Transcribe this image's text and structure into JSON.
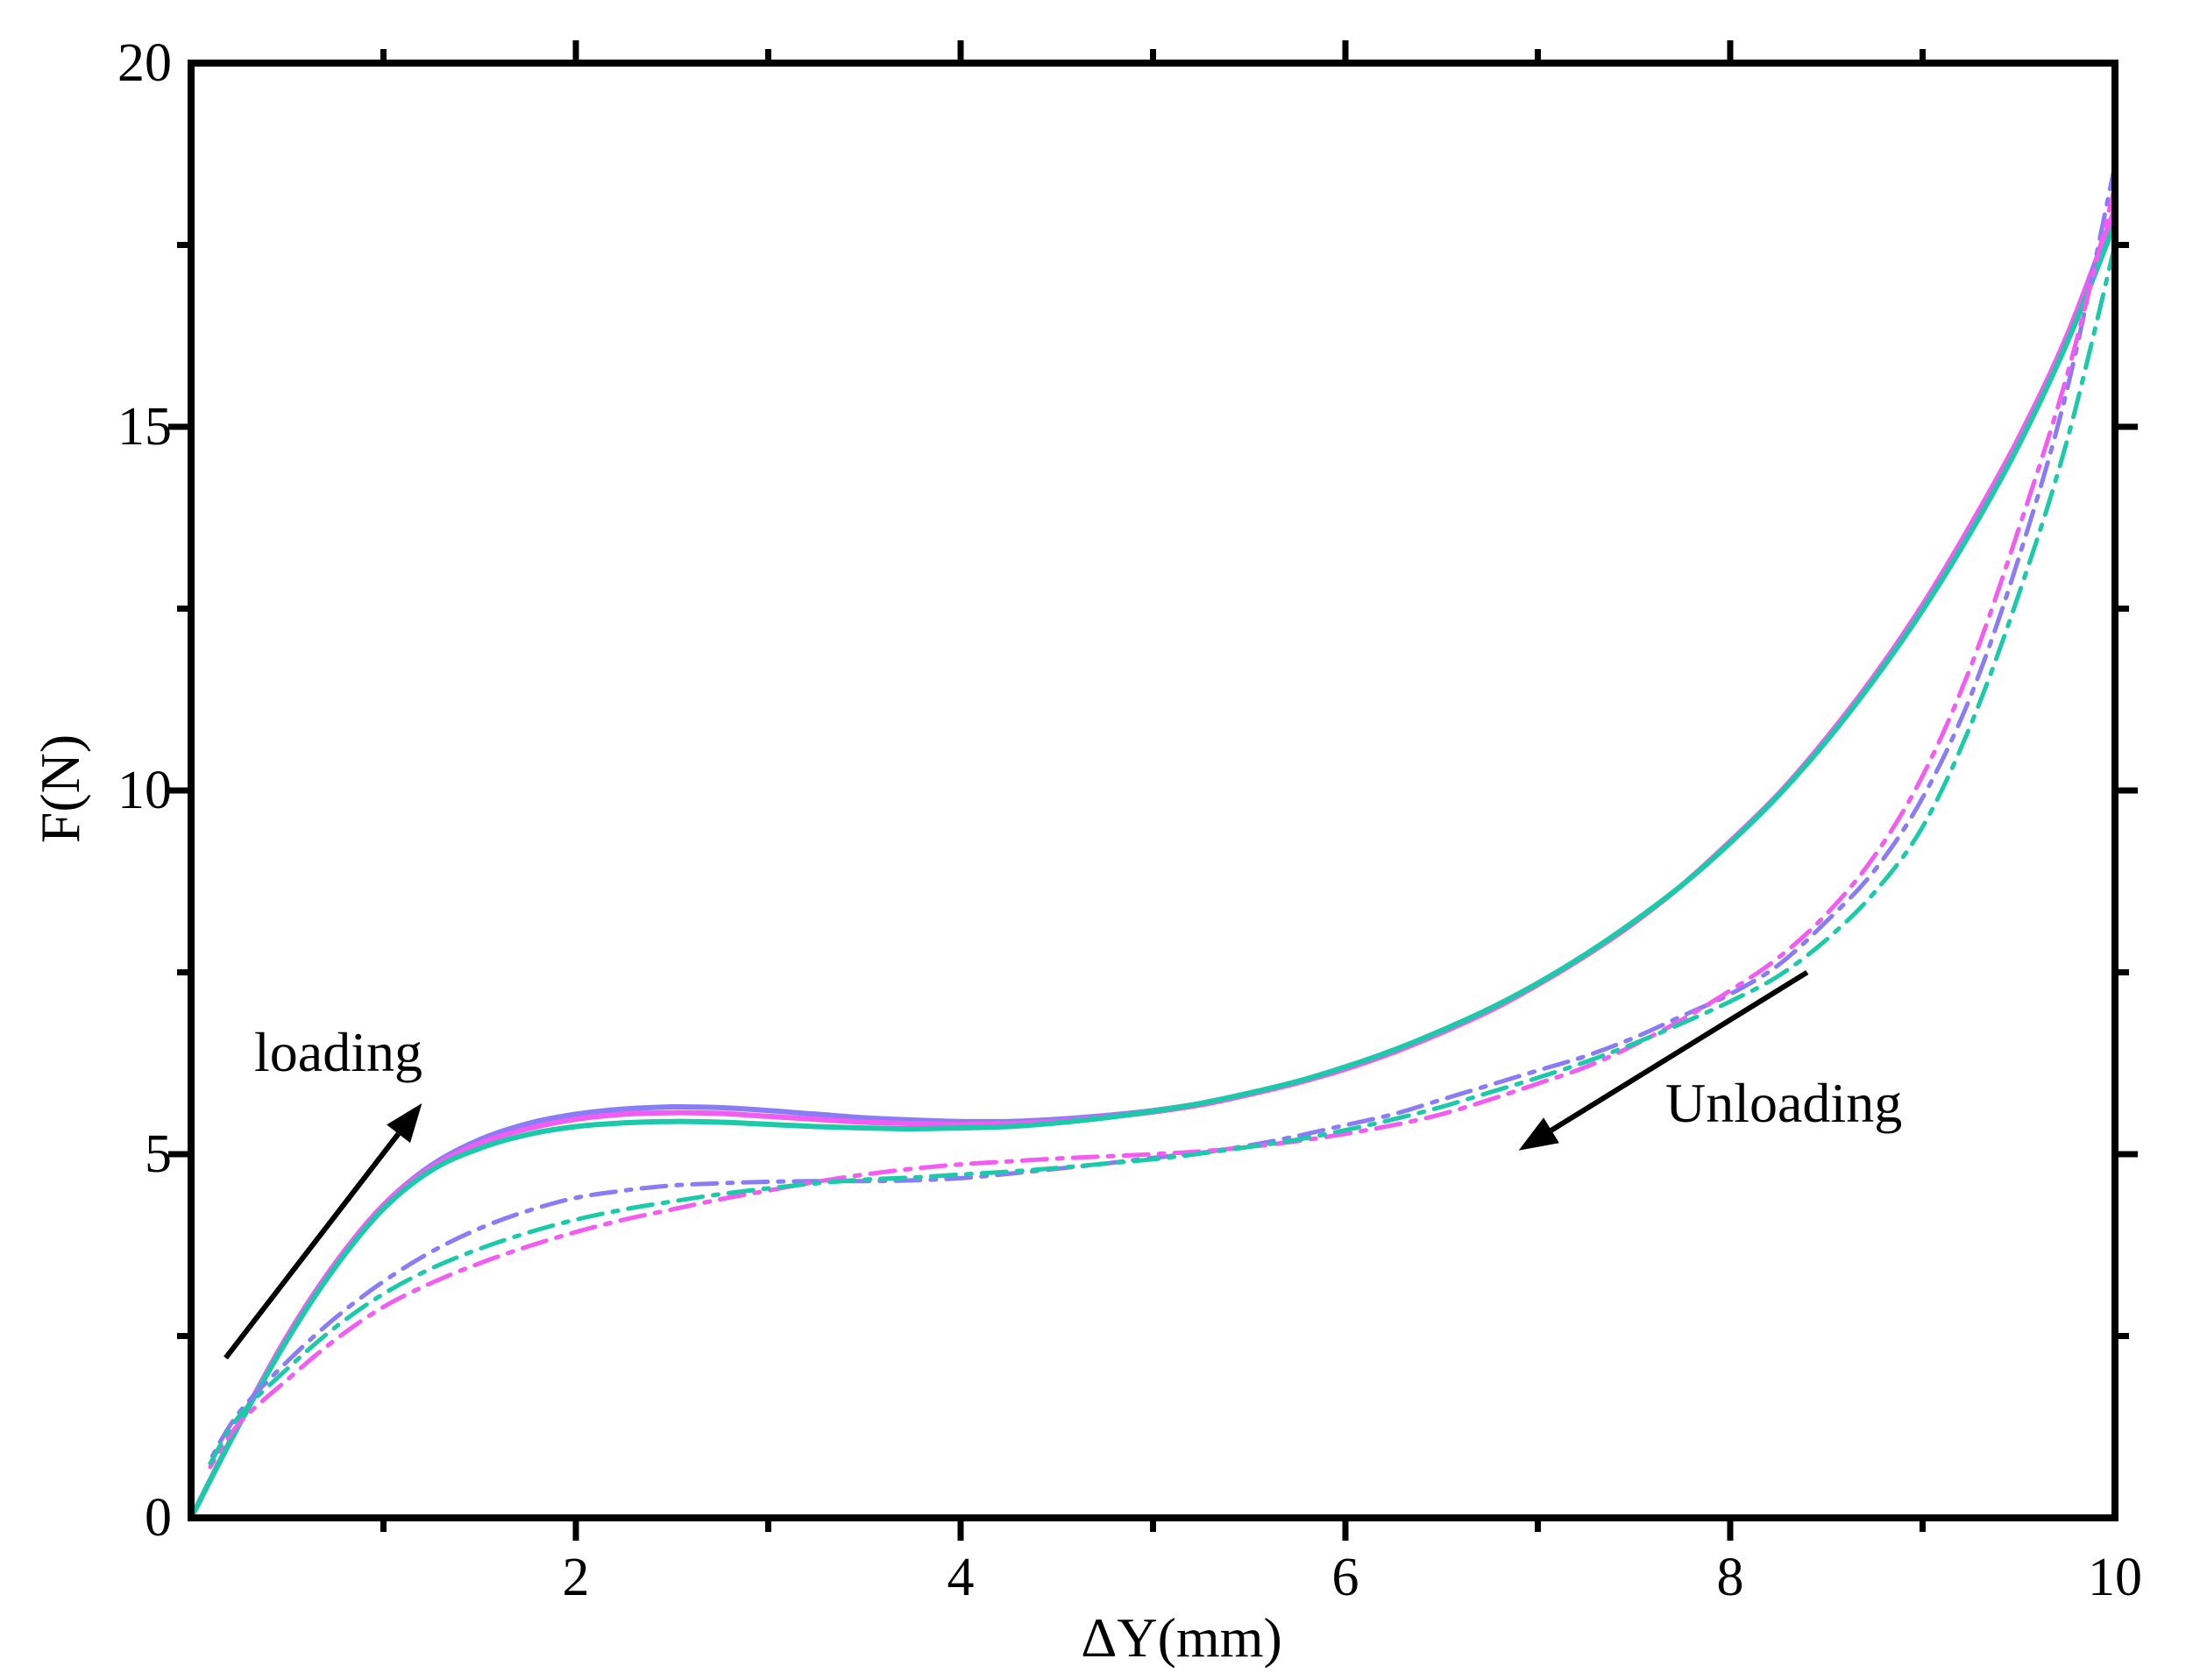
{
  "chart_data": {
    "type": "line",
    "title": "",
    "xlabel": "ΔY(mm)",
    "ylabel": "F(N)",
    "xlim": [
      0,
      10
    ],
    "ylim": [
      0,
      20
    ],
    "x_ticks": [
      "2",
      "4",
      "6",
      "8",
      "10"
    ],
    "y_ticks": [
      "0",
      "5",
      "10",
      "15",
      "20"
    ],
    "grid": false,
    "legend": "none",
    "annotations": [
      {
        "id": "loading",
        "text": "loading",
        "arrow_from": [
          0.18,
          2.2
        ],
        "arrow_to": [
          1.2,
          5.7
        ]
      },
      {
        "id": "unloading",
        "text": "Unloading",
        "arrow_from": [
          8.4,
          7.5
        ],
        "arrow_to": [
          6.9,
          5.05
        ]
      }
    ],
    "colors": {
      "purple": "#8a7cf5",
      "magenta": "#f25cf0",
      "teal": "#1cc9a9",
      "axis": "#000000"
    },
    "series": [
      {
        "name": "loading-purple",
        "phase": "loading",
        "color": "#8a7cf5",
        "style": "solid",
        "x": [
          0,
          0.25,
          0.5,
          0.75,
          1.0,
          1.25,
          1.5,
          1.75,
          2.0,
          2.25,
          2.5,
          2.75,
          3.0,
          3.25,
          3.5,
          3.75,
          4.0,
          4.25,
          4.5,
          4.75,
          5.0,
          5.25,
          5.5,
          5.75,
          6.0,
          6.25,
          6.5,
          6.75,
          7.0,
          7.25,
          7.5,
          7.75,
          8.0,
          8.25,
          8.5,
          8.75,
          9.0,
          9.25,
          9.5,
          9.75,
          10.0
        ],
        "y": [
          0,
          1.3,
          2.5,
          3.5,
          4.3,
          4.85,
          5.2,
          5.42,
          5.55,
          5.62,
          5.65,
          5.64,
          5.6,
          5.55,
          5.5,
          5.47,
          5.45,
          5.45,
          5.48,
          5.53,
          5.6,
          5.7,
          5.84,
          6.0,
          6.2,
          6.43,
          6.7,
          7.0,
          7.35,
          7.75,
          8.2,
          8.7,
          9.3,
          9.95,
          10.7,
          11.55,
          12.5,
          13.6,
          14.8,
          16.2,
          17.9
        ]
      },
      {
        "name": "loading-magenta",
        "phase": "loading",
        "color": "#f25cf0",
        "style": "solid",
        "x": [
          0,
          0.25,
          0.5,
          0.75,
          1.0,
          1.25,
          1.5,
          1.75,
          2.0,
          2.25,
          2.5,
          2.75,
          3.0,
          3.25,
          3.5,
          3.75,
          4.0,
          4.25,
          4.5,
          4.75,
          5.0,
          5.25,
          5.5,
          5.75,
          6.0,
          6.25,
          6.5,
          6.75,
          7.0,
          7.25,
          7.5,
          7.75,
          8.0,
          8.25,
          8.5,
          8.75,
          9.0,
          9.25,
          9.5,
          9.75,
          10.0
        ],
        "y": [
          0,
          1.3,
          2.5,
          3.5,
          4.3,
          4.82,
          5.15,
          5.35,
          5.48,
          5.55,
          5.57,
          5.56,
          5.52,
          5.48,
          5.44,
          5.42,
          5.41,
          5.42,
          5.45,
          5.51,
          5.58,
          5.68,
          5.82,
          5.98,
          6.17,
          6.4,
          6.67,
          6.97,
          7.33,
          7.73,
          8.18,
          8.7,
          9.3,
          9.95,
          10.72,
          11.58,
          12.55,
          13.65,
          14.85,
          16.25,
          18.0
        ]
      },
      {
        "name": "loading-teal",
        "phase": "loading",
        "color": "#1cc9a9",
        "style": "solid",
        "x": [
          0,
          0.25,
          0.5,
          0.75,
          1.0,
          1.25,
          1.5,
          1.75,
          2.0,
          2.25,
          2.5,
          2.75,
          3.0,
          3.25,
          3.5,
          3.75,
          4.0,
          4.25,
          4.5,
          4.75,
          5.0,
          5.25,
          5.5,
          5.75,
          6.0,
          6.25,
          6.5,
          6.75,
          7.0,
          7.25,
          7.5,
          7.75,
          8.0,
          8.25,
          8.5,
          8.75,
          9.0,
          9.25,
          9.5,
          9.75,
          10.0
        ],
        "y": [
          0,
          1.28,
          2.45,
          3.45,
          4.25,
          4.78,
          5.08,
          5.27,
          5.38,
          5.43,
          5.45,
          5.44,
          5.41,
          5.38,
          5.36,
          5.35,
          5.36,
          5.38,
          5.43,
          5.5,
          5.59,
          5.7,
          5.84,
          6.0,
          6.2,
          6.43,
          6.7,
          7.0,
          7.35,
          7.75,
          8.2,
          8.7,
          9.28,
          9.93,
          10.68,
          11.53,
          12.48,
          13.55,
          14.75,
          16.15,
          17.8
        ]
      },
      {
        "name": "unloading-purple",
        "phase": "unloading",
        "color": "#8a7cf5",
        "style": "dashdot",
        "x": [
          10.0,
          9.75,
          9.5,
          9.25,
          9.0,
          8.75,
          8.5,
          8.25,
          8.0,
          7.75,
          7.5,
          7.25,
          7.0,
          6.75,
          6.5,
          6.25,
          6.0,
          5.75,
          5.5,
          5.25,
          5.0,
          4.75,
          4.5,
          4.25,
          4.0,
          3.75,
          3.5,
          3.25,
          3.0,
          2.75,
          2.5,
          2.25,
          2.0,
          1.75,
          1.5,
          1.25,
          1.0,
          0.75,
          0.5,
          0.25,
          0.1
        ],
        "y": [
          18.6,
          15.5,
          13.2,
          11.3,
          9.9,
          8.9,
          8.2,
          7.6,
          7.2,
          6.9,
          6.6,
          6.35,
          6.15,
          5.95,
          5.75,
          5.55,
          5.4,
          5.25,
          5.12,
          5.02,
          4.95,
          4.87,
          4.8,
          4.73,
          4.67,
          4.64,
          4.63,
          4.63,
          4.62,
          4.6,
          4.57,
          4.5,
          4.4,
          4.22,
          3.98,
          3.66,
          3.25,
          2.75,
          2.15,
          1.45,
          0.8
        ]
      },
      {
        "name": "unloading-magenta",
        "phase": "unloading",
        "color": "#f25cf0",
        "style": "dashdot",
        "x": [
          10.0,
          9.75,
          9.5,
          9.25,
          9.0,
          8.75,
          8.5,
          8.25,
          8.0,
          7.75,
          7.5,
          7.25,
          7.0,
          6.75,
          6.5,
          6.25,
          6.0,
          5.75,
          5.5,
          5.25,
          5.0,
          4.75,
          4.5,
          4.25,
          4.0,
          3.75,
          3.5,
          3.25,
          3.0,
          2.75,
          2.5,
          2.25,
          2.0,
          1.75,
          1.5,
          1.25,
          1.0,
          0.75,
          0.5,
          0.25,
          0.1
        ],
        "y": [
          18.3,
          15.7,
          13.6,
          11.7,
          10.2,
          9.1,
          8.3,
          7.7,
          7.25,
          6.85,
          6.5,
          6.2,
          5.97,
          5.75,
          5.55,
          5.4,
          5.28,
          5.18,
          5.1,
          5.04,
          5.0,
          4.97,
          4.94,
          4.9,
          4.86,
          4.8,
          4.72,
          4.62,
          4.5,
          4.38,
          4.24,
          4.1,
          3.93,
          3.73,
          3.5,
          3.23,
          2.9,
          2.45,
          1.9,
          1.3,
          0.7
        ]
      },
      {
        "name": "unloading-teal",
        "phase": "unloading",
        "color": "#1cc9a9",
        "style": "dashdot",
        "x": [
          10.0,
          9.75,
          9.5,
          9.25,
          9.0,
          8.75,
          8.5,
          8.25,
          8.0,
          7.75,
          7.5,
          7.25,
          7.0,
          6.75,
          6.5,
          6.25,
          6.0,
          5.75,
          5.5,
          5.25,
          5.0,
          4.75,
          4.5,
          4.25,
          4.0,
          3.75,
          3.5,
          3.25,
          3.0,
          2.75,
          2.5,
          2.25,
          2.0,
          1.75,
          1.5,
          1.25,
          1.0,
          0.75,
          0.5,
          0.25,
          0.1
        ],
        "y": [
          17.5,
          14.8,
          12.7,
          10.9,
          9.5,
          8.6,
          7.95,
          7.45,
          7.1,
          6.8,
          6.52,
          6.27,
          6.05,
          5.85,
          5.65,
          5.48,
          5.33,
          5.2,
          5.1,
          5.01,
          4.93,
          4.87,
          4.81,
          4.76,
          4.72,
          4.68,
          4.65,
          4.6,
          4.53,
          4.45,
          4.35,
          4.24,
          4.1,
          3.92,
          3.7,
          3.43,
          3.08,
          2.62,
          2.05,
          1.4,
          0.75
        ]
      }
    ]
  }
}
